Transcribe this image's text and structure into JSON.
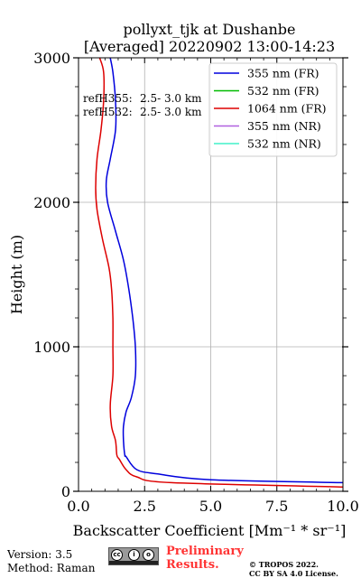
{
  "chart_data": {
    "type": "line",
    "title_line1": "pollyxt_tjk at Dushanbe",
    "title_line2": "[Averaged] 20220902 13:00-14:23",
    "xlabel": "Backscatter Coefficient [Mm⁻¹ * sr⁻¹]",
    "ylabel": "Height (m)",
    "xlim": [
      0,
      10
    ],
    "ylim": [
      0,
      3000
    ],
    "xticks": [
      "0.0",
      "2.5",
      "5.0",
      "7.5",
      "10.0"
    ],
    "yticks": [
      "0",
      "1000",
      "2000",
      "3000"
    ],
    "grid": true,
    "legend_position": "top-right",
    "ref_heights": [
      {
        "label": "refH355:",
        "range": "2.5- 3.0 km"
      },
      {
        "label": "refH532:",
        "range": "2.5- 3.0 km"
      }
    ],
    "series": [
      {
        "name": "355 nm (FR)",
        "color": "#0000dd",
        "x": [
          1.2,
          1.3,
          1.4,
          1.4,
          1.2,
          1.05,
          1.1,
          1.4,
          1.7,
          1.9,
          2.05,
          2.15,
          2.15,
          2.0,
          1.8,
          1.7,
          1.7,
          1.75,
          1.8,
          2.2,
          3.0,
          5.0,
          10.0
        ],
        "y": [
          3000,
          2900,
          2700,
          2500,
          2300,
          2150,
          2000,
          1800,
          1600,
          1400,
          1200,
          1000,
          800,
          650,
          550,
          450,
          350,
          250,
          240,
          150,
          120,
          80,
          60
        ]
      },
      {
        "name": "532 nm (FR)",
        "color": "#00bb00",
        "x": [],
        "y": []
      },
      {
        "name": "1064 nm (FR)",
        "color": "#dd0000",
        "x": [
          0.8,
          0.95,
          0.95,
          0.85,
          0.7,
          0.65,
          0.7,
          0.9,
          1.15,
          1.25,
          1.3,
          1.3,
          1.3,
          1.2,
          1.25,
          1.4,
          1.45,
          1.55,
          1.8,
          2.2,
          3.5,
          10.0
        ],
        "y": [
          3000,
          2900,
          2700,
          2500,
          2300,
          2100,
          1950,
          1750,
          1550,
          1400,
          1200,
          1000,
          800,
          600,
          450,
          350,
          250,
          220,
          150,
          100,
          60,
          30
        ]
      },
      {
        "name": "355 nm (NR)",
        "color": "#b060e0",
        "x": [],
        "y": []
      },
      {
        "name": "532 nm (NR)",
        "color": "#40f0c8",
        "x": [],
        "y": []
      }
    ]
  },
  "footer": {
    "version": "Version: 3.5",
    "method": "Method: Raman",
    "preliminary_line1": "Preliminary",
    "preliminary_line2": "Results.",
    "copyright_line1": "© TROPOS 2022.",
    "copyright_line2": "CC BY SA 4.0 License.",
    "license_badge": "cc-by-sa-icon",
    "preliminary_color": "#ff3333"
  }
}
